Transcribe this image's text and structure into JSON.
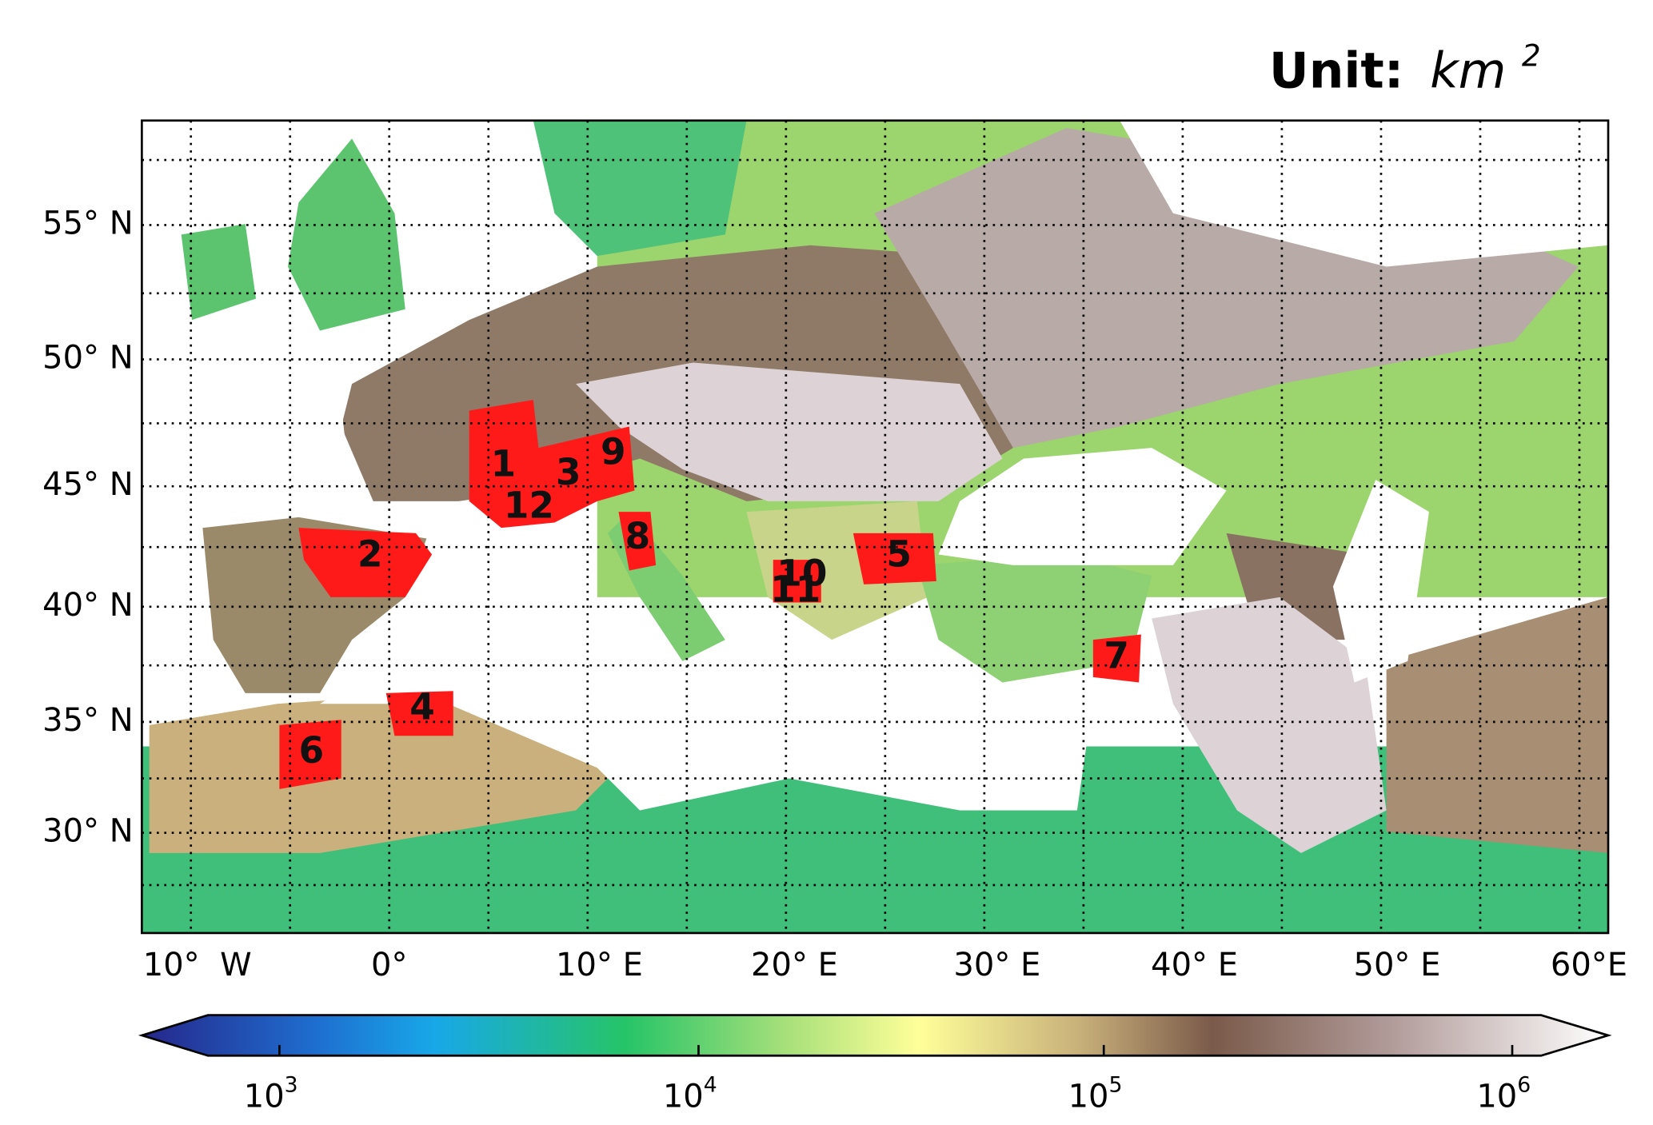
{
  "title": {
    "prefix": "Unit:",
    "unit": "km",
    "exponent": "2"
  },
  "latitude_labels": [
    "55° N",
    "50° N",
    "45° N",
    "40° N",
    "35° N",
    "30° N"
  ],
  "longitude_labels": [
    "10°  W",
    "0°",
    "10° E",
    "20° E",
    "30° E",
    "40° E",
    "50° E",
    "60°E"
  ],
  "colorbar": {
    "ticks": [
      {
        "base": "10",
        "exponent": "3"
      },
      {
        "base": "10",
        "exponent": "4"
      },
      {
        "base": "10",
        "exponent": "5"
      },
      {
        "base": "10",
        "exponent": "6"
      }
    ]
  },
  "regions": [
    {
      "label": "1"
    },
    {
      "label": "2"
    },
    {
      "label": "3"
    },
    {
      "label": "4"
    },
    {
      "label": "5"
    },
    {
      "label": "6"
    },
    {
      "label": "7"
    },
    {
      "label": "8"
    },
    {
      "label": "9"
    },
    {
      "label": "10"
    },
    {
      "label": "11"
    },
    {
      "label": "12"
    }
  ]
}
